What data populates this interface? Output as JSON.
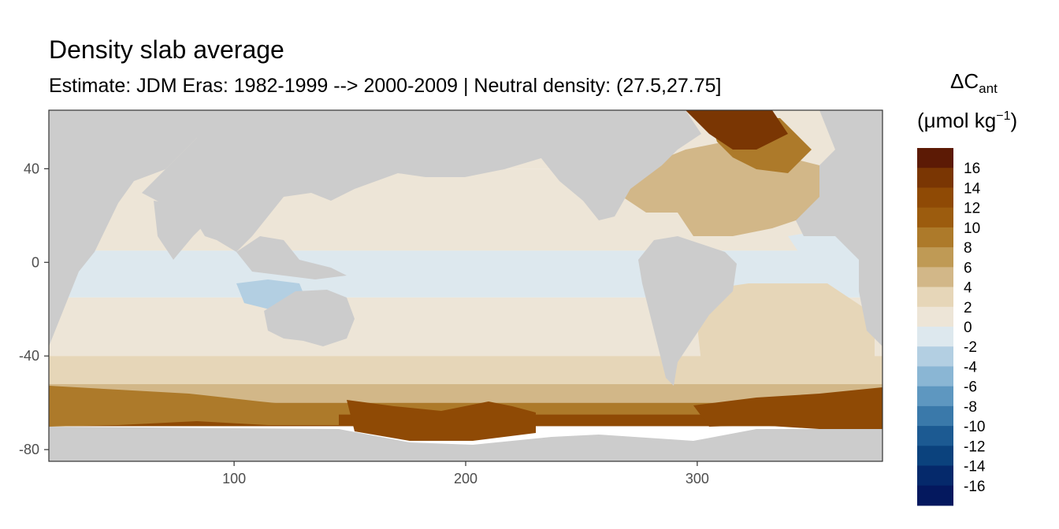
{
  "chart_data": {
    "type": "heatmap",
    "title": "Density slab average",
    "subtitle": "Estimate: JDM Eras: 1982-1999 --> 2000-2009 | Neutral density: (27.5,27.75]",
    "xlim": [
      20,
      380
    ],
    "ylim": [
      -85,
      65
    ],
    "x_ticks": [
      100,
      200,
      300
    ],
    "y_ticks": [
      40,
      0,
      -40,
      -80
    ],
    "grid": false,
    "legend": {
      "position": "right",
      "title_main": "ΔC",
      "title_sub": "ant",
      "unit_open": "(μmol kg",
      "unit_sup": "−1",
      "unit_close": ")",
      "breaks": [
        16,
        14,
        12,
        10,
        8,
        6,
        4,
        2,
        0,
        -2,
        -4,
        -6,
        -8,
        -10,
        -12,
        -14,
        -16
      ],
      "bin_colors": [
        "#5c1a05",
        "#7a3603",
        "#8f4a05",
        "#9c5c0e",
        "#ad7a2a",
        "#bf9a55",
        "#d2b788",
        "#e6d6b8",
        "#ede5d7",
        "#dde8ee",
        "#b3cfe2",
        "#8ab6d4",
        "#5e97c0",
        "#3a79aa",
        "#1c5a92",
        "#0b427d",
        "#05296b",
        "#04185e"
      ]
    },
    "land_color": "#cccccc",
    "missing_color": "#ffffff",
    "zonal_bands": [
      {
        "lat": [
          40,
          65
        ],
        "value": 1
      },
      {
        "lat": [
          5,
          40
        ],
        "value": 1
      },
      {
        "lat": [
          -15,
          5
        ],
        "value": -1
      },
      {
        "lat": [
          -40,
          -15
        ],
        "value": 1
      },
      {
        "lat": [
          -52,
          -40
        ],
        "value": 3
      },
      {
        "lat": [
          -60,
          -52
        ],
        "value": 5
      },
      {
        "lat": [
          -65,
          -60
        ],
        "value": 8
      },
      {
        "lat": [
          -70,
          -65
        ],
        "value": 12
      }
    ]
  }
}
